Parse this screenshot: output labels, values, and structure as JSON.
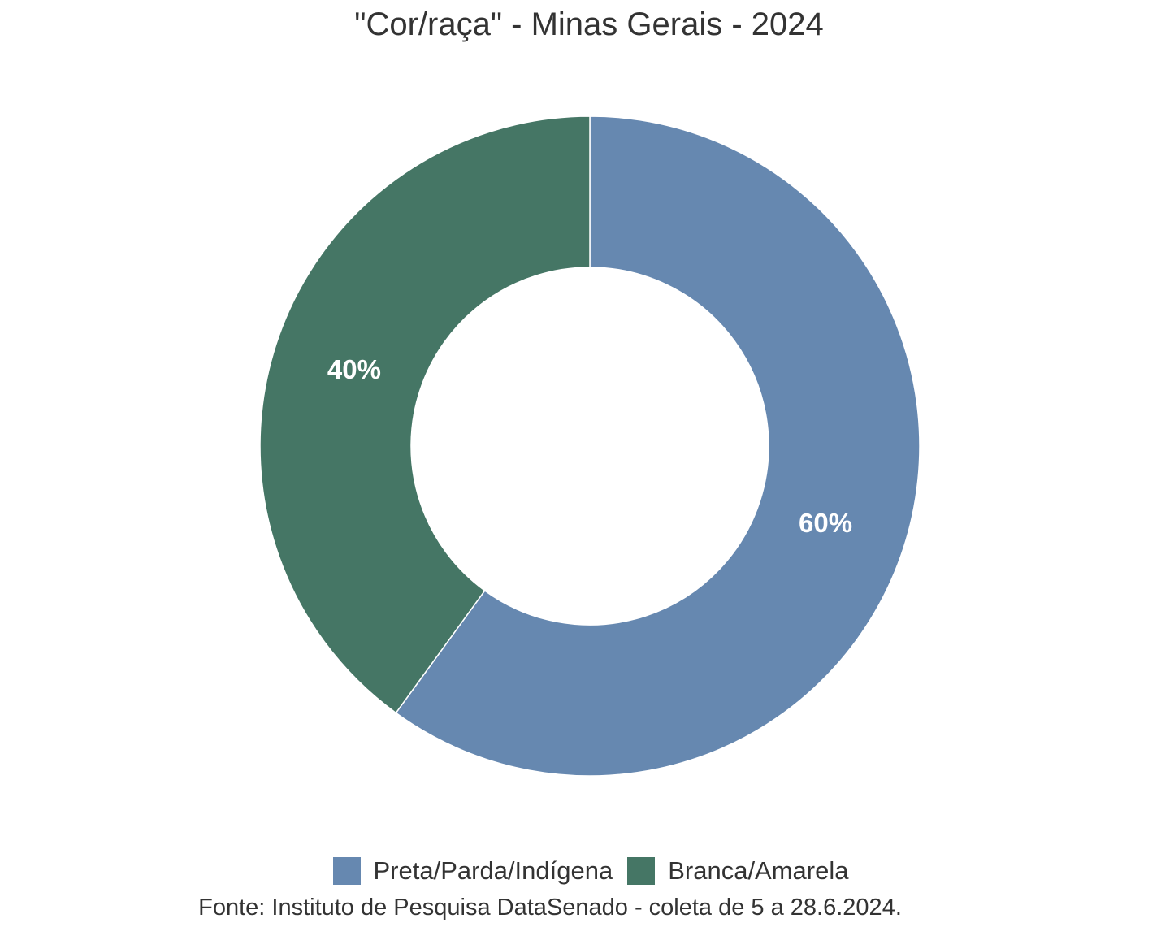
{
  "chart_data": {
    "type": "pie",
    "title": "\"Cor/raça\" - Minas Gerais - 2024",
    "categories": [
      "Preta/Parda/Indígena",
      "Branca/Amarela"
    ],
    "values": [
      60,
      40
    ],
    "value_labels": [
      "60%",
      "40%"
    ],
    "colors": [
      "#6688b0",
      "#457665"
    ],
    "donut": true,
    "legend_position": "bottom",
    "source": "Fonte: Instituto de Pesquisa DataSenado - coleta de 5 a 28.6.2024."
  }
}
